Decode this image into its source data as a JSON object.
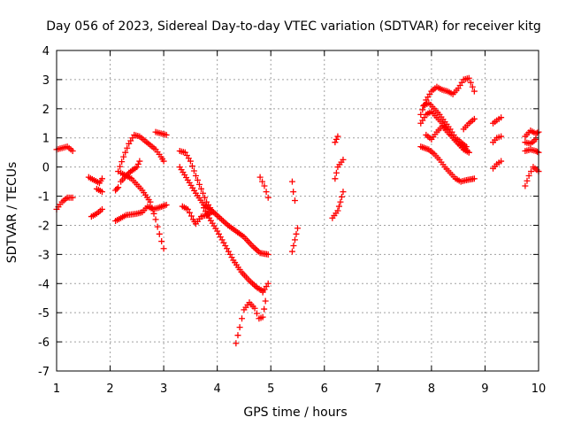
{
  "chart_data": {
    "type": "scatter",
    "title": "Day 056 of 2023, Sidereal Day-to-day VTEC variation (SDTVAR) for receiver kitg",
    "xlabel": "GPS time / hours",
    "ylabel": "SDTVAR / TECUs",
    "xlim": [
      1,
      10
    ],
    "ylim": [
      -7,
      4
    ],
    "x_ticks": [
      "1",
      "2",
      "3",
      "4",
      "5",
      "6",
      "7",
      "8",
      "9",
      "10"
    ],
    "y_ticks": [
      "-7",
      "-6",
      "-5",
      "-4",
      "-3",
      "-2",
      "-1",
      "0",
      "1",
      "2",
      "3",
      "4"
    ],
    "grid": true,
    "marker": "+",
    "colors": {
      "points": "#ff0000",
      "grid": "#a0a0a0",
      "axes": "#000000"
    },
    "tracks": [
      [
        [
          1.0,
          0.6
        ],
        [
          1.1,
          0.65
        ],
        [
          1.2,
          0.7
        ],
        [
          1.3,
          0.55
        ]
      ],
      [
        [
          1.0,
          -1.45
        ],
        [
          1.1,
          -1.2
        ],
        [
          1.2,
          -1.05
        ],
        [
          1.3,
          -1.05
        ]
      ],
      [
        [
          1.6,
          -0.35
        ],
        [
          1.7,
          -0.45
        ],
        [
          1.8,
          -0.55
        ],
        [
          1.85,
          -0.4
        ]
      ],
      [
        [
          1.65,
          -1.7
        ],
        [
          1.75,
          -1.6
        ],
        [
          1.85,
          -1.45
        ]
      ],
      [
        [
          1.75,
          -0.75
        ],
        [
          1.85,
          -0.85
        ]
      ],
      [
        [
          2.1,
          -0.8
        ],
        [
          2.15,
          -0.7
        ]
      ],
      [
        [
          2.15,
          -0.15
        ],
        [
          2.25,
          0.35
        ],
        [
          2.35,
          0.8
        ],
        [
          2.45,
          1.1
        ],
        [
          2.55,
          1.05
        ],
        [
          2.65,
          0.9
        ],
        [
          2.75,
          0.75
        ],
        [
          2.85,
          0.6
        ],
        [
          2.95,
          0.35
        ],
        [
          3.0,
          0.2
        ]
      ],
      [
        [
          2.1,
          -1.85
        ],
        [
          2.3,
          -1.65
        ],
        [
          2.5,
          -1.6
        ],
        [
          2.6,
          -1.55
        ],
        [
          2.7,
          -1.35
        ],
        [
          2.8,
          -1.45
        ],
        [
          2.9,
          -1.4
        ],
        [
          3.05,
          -1.3
        ]
      ],
      [
        [
          2.2,
          -0.2
        ],
        [
          2.4,
          -0.4
        ],
        [
          2.6,
          -0.8
        ],
        [
          2.75,
          -1.2
        ],
        [
          2.85,
          -1.8
        ],
        [
          2.92,
          -2.3
        ],
        [
          3.0,
          -2.8
        ]
      ],
      [
        [
          2.2,
          -0.5
        ],
        [
          2.35,
          -0.2
        ],
        [
          2.5,
          0.0
        ],
        [
          2.55,
          0.2
        ]
      ],
      [
        [
          2.85,
          1.2
        ],
        [
          2.95,
          1.15
        ],
        [
          3.05,
          1.1
        ]
      ],
      [
        [
          3.3,
          0.55
        ],
        [
          3.4,
          0.5
        ],
        [
          3.5,
          0.2
        ],
        [
          3.6,
          -0.3
        ],
        [
          3.7,
          -0.75
        ],
        [
          3.8,
          -1.2
        ],
        [
          3.9,
          -1.5
        ]
      ],
      [
        [
          3.3,
          0.0
        ],
        [
          3.45,
          -0.45
        ],
        [
          3.6,
          -0.9
        ],
        [
          3.75,
          -1.3
        ],
        [
          3.9,
          -1.5
        ],
        [
          4.05,
          -1.75
        ],
        [
          4.2,
          -2.0
        ],
        [
          4.35,
          -2.2
        ],
        [
          4.5,
          -2.4
        ],
        [
          4.65,
          -2.7
        ],
        [
          4.8,
          -2.95
        ],
        [
          4.95,
          -3.0
        ]
      ],
      [
        [
          3.35,
          -1.35
        ],
        [
          3.45,
          -1.45
        ],
        [
          3.55,
          -1.8
        ],
        [
          3.6,
          -1.95
        ],
        [
          3.7,
          -1.7
        ],
        [
          3.8,
          -1.65
        ],
        [
          3.9,
          -1.55
        ]
      ],
      [
        [
          3.75,
          -1.4
        ],
        [
          3.85,
          -1.75
        ],
        [
          4.0,
          -2.2
        ],
        [
          4.15,
          -2.7
        ],
        [
          4.3,
          -3.2
        ],
        [
          4.45,
          -3.6
        ],
        [
          4.6,
          -3.9
        ],
        [
          4.75,
          -4.15
        ],
        [
          4.85,
          -4.25
        ]
      ],
      [
        [
          4.85,
          -4.3
        ],
        [
          4.95,
          -4.0
        ]
      ],
      [
        [
          4.35,
          -6.05
        ],
        [
          4.42,
          -5.5
        ],
        [
          4.5,
          -4.9
        ],
        [
          4.6,
          -4.65
        ],
        [
          4.7,
          -4.85
        ],
        [
          4.78,
          -5.2
        ],
        [
          4.85,
          -5.15
        ],
        [
          4.9,
          -4.6
        ]
      ],
      [
        [
          4.8,
          -0.35
        ],
        [
          4.88,
          -0.65
        ],
        [
          4.95,
          -1.05
        ]
      ],
      [
        [
          5.4,
          -0.5
        ],
        [
          5.42,
          -0.85
        ],
        [
          5.45,
          -1.15
        ]
      ],
      [
        [
          5.4,
          -2.9
        ],
        [
          5.45,
          -2.5
        ],
        [
          5.5,
          -2.1
        ]
      ],
      [
        [
          6.15,
          -1.75
        ],
        [
          6.25,
          -1.5
        ],
        [
          6.3,
          -1.2
        ],
        [
          6.35,
          -0.85
        ]
      ],
      [
        [
          6.2,
          -0.4
        ],
        [
          6.25,
          0.0
        ],
        [
          6.35,
          0.25
        ]
      ],
      [
        [
          6.2,
          0.85
        ],
        [
          6.25,
          1.05
        ]
      ],
      [
        [
          7.8,
          0.7
        ],
        [
          7.95,
          0.6
        ],
        [
          8.05,
          0.45
        ],
        [
          8.15,
          0.25
        ],
        [
          8.25,
          0.0
        ],
        [
          8.35,
          -0.2
        ],
        [
          8.45,
          -0.4
        ],
        [
          8.55,
          -0.5
        ],
        [
          8.65,
          -0.45
        ],
        [
          8.8,
          -0.4
        ]
      ],
      [
        [
          7.8,
          1.8
        ],
        [
          7.9,
          2.3
        ],
        [
          8.0,
          2.6
        ],
        [
          8.1,
          2.75
        ],
        [
          8.2,
          2.65
        ],
        [
          8.3,
          2.6
        ],
        [
          8.4,
          2.5
        ],
        [
          8.5,
          2.7
        ],
        [
          8.6,
          3.0
        ],
        [
          8.7,
          3.05
        ],
        [
          8.8,
          2.6
        ]
      ],
      [
        [
          7.8,
          1.5
        ],
        [
          7.9,
          1.8
        ],
        [
          8.0,
          1.9
        ],
        [
          8.1,
          1.7
        ],
        [
          8.2,
          1.5
        ],
        [
          8.3,
          1.3
        ],
        [
          8.4,
          1.0
        ],
        [
          8.5,
          0.8
        ],
        [
          8.6,
          0.6
        ],
        [
          8.7,
          0.5
        ]
      ],
      [
        [
          7.85,
          2.1
        ],
        [
          7.95,
          2.2
        ],
        [
          8.05,
          2.0
        ],
        [
          8.15,
          1.8
        ],
        [
          8.25,
          1.55
        ],
        [
          8.35,
          1.3
        ],
        [
          8.45,
          1.0
        ],
        [
          8.55,
          0.85
        ],
        [
          8.65,
          0.7
        ]
      ],
      [
        [
          7.9,
          1.1
        ],
        [
          8.0,
          0.95
        ],
        [
          8.1,
          1.2
        ],
        [
          8.2,
          1.4
        ],
        [
          8.3,
          1.2
        ],
        [
          8.4,
          1.0
        ],
        [
          8.5,
          0.8
        ],
        [
          8.6,
          0.7
        ],
        [
          8.7,
          0.5
        ]
      ],
      [
        [
          8.6,
          1.3
        ],
        [
          8.7,
          1.5
        ],
        [
          8.8,
          1.65
        ]
      ],
      [
        [
          9.15,
          -0.05
        ],
        [
          9.22,
          0.1
        ],
        [
          9.3,
          0.2
        ]
      ],
      [
        [
          9.15,
          0.85
        ],
        [
          9.22,
          1.0
        ],
        [
          9.3,
          1.05
        ]
      ],
      [
        [
          9.15,
          1.5
        ],
        [
          9.22,
          1.6
        ],
        [
          9.3,
          1.7
        ]
      ],
      [
        [
          9.75,
          -0.65
        ],
        [
          9.82,
          -0.3
        ],
        [
          9.9,
          0.0
        ],
        [
          10.0,
          -0.15
        ]
      ],
      [
        [
          9.75,
          0.55
        ],
        [
          9.85,
          0.6
        ],
        [
          9.95,
          0.55
        ],
        [
          10.0,
          0.5
        ]
      ],
      [
        [
          9.75,
          1.05
        ],
        [
          9.85,
          1.25
        ],
        [
          9.95,
          1.15
        ],
        [
          10.0,
          1.2
        ]
      ],
      [
        [
          9.75,
          0.85
        ],
        [
          9.85,
          0.8
        ],
        [
          9.95,
          0.95
        ]
      ]
    ]
  }
}
